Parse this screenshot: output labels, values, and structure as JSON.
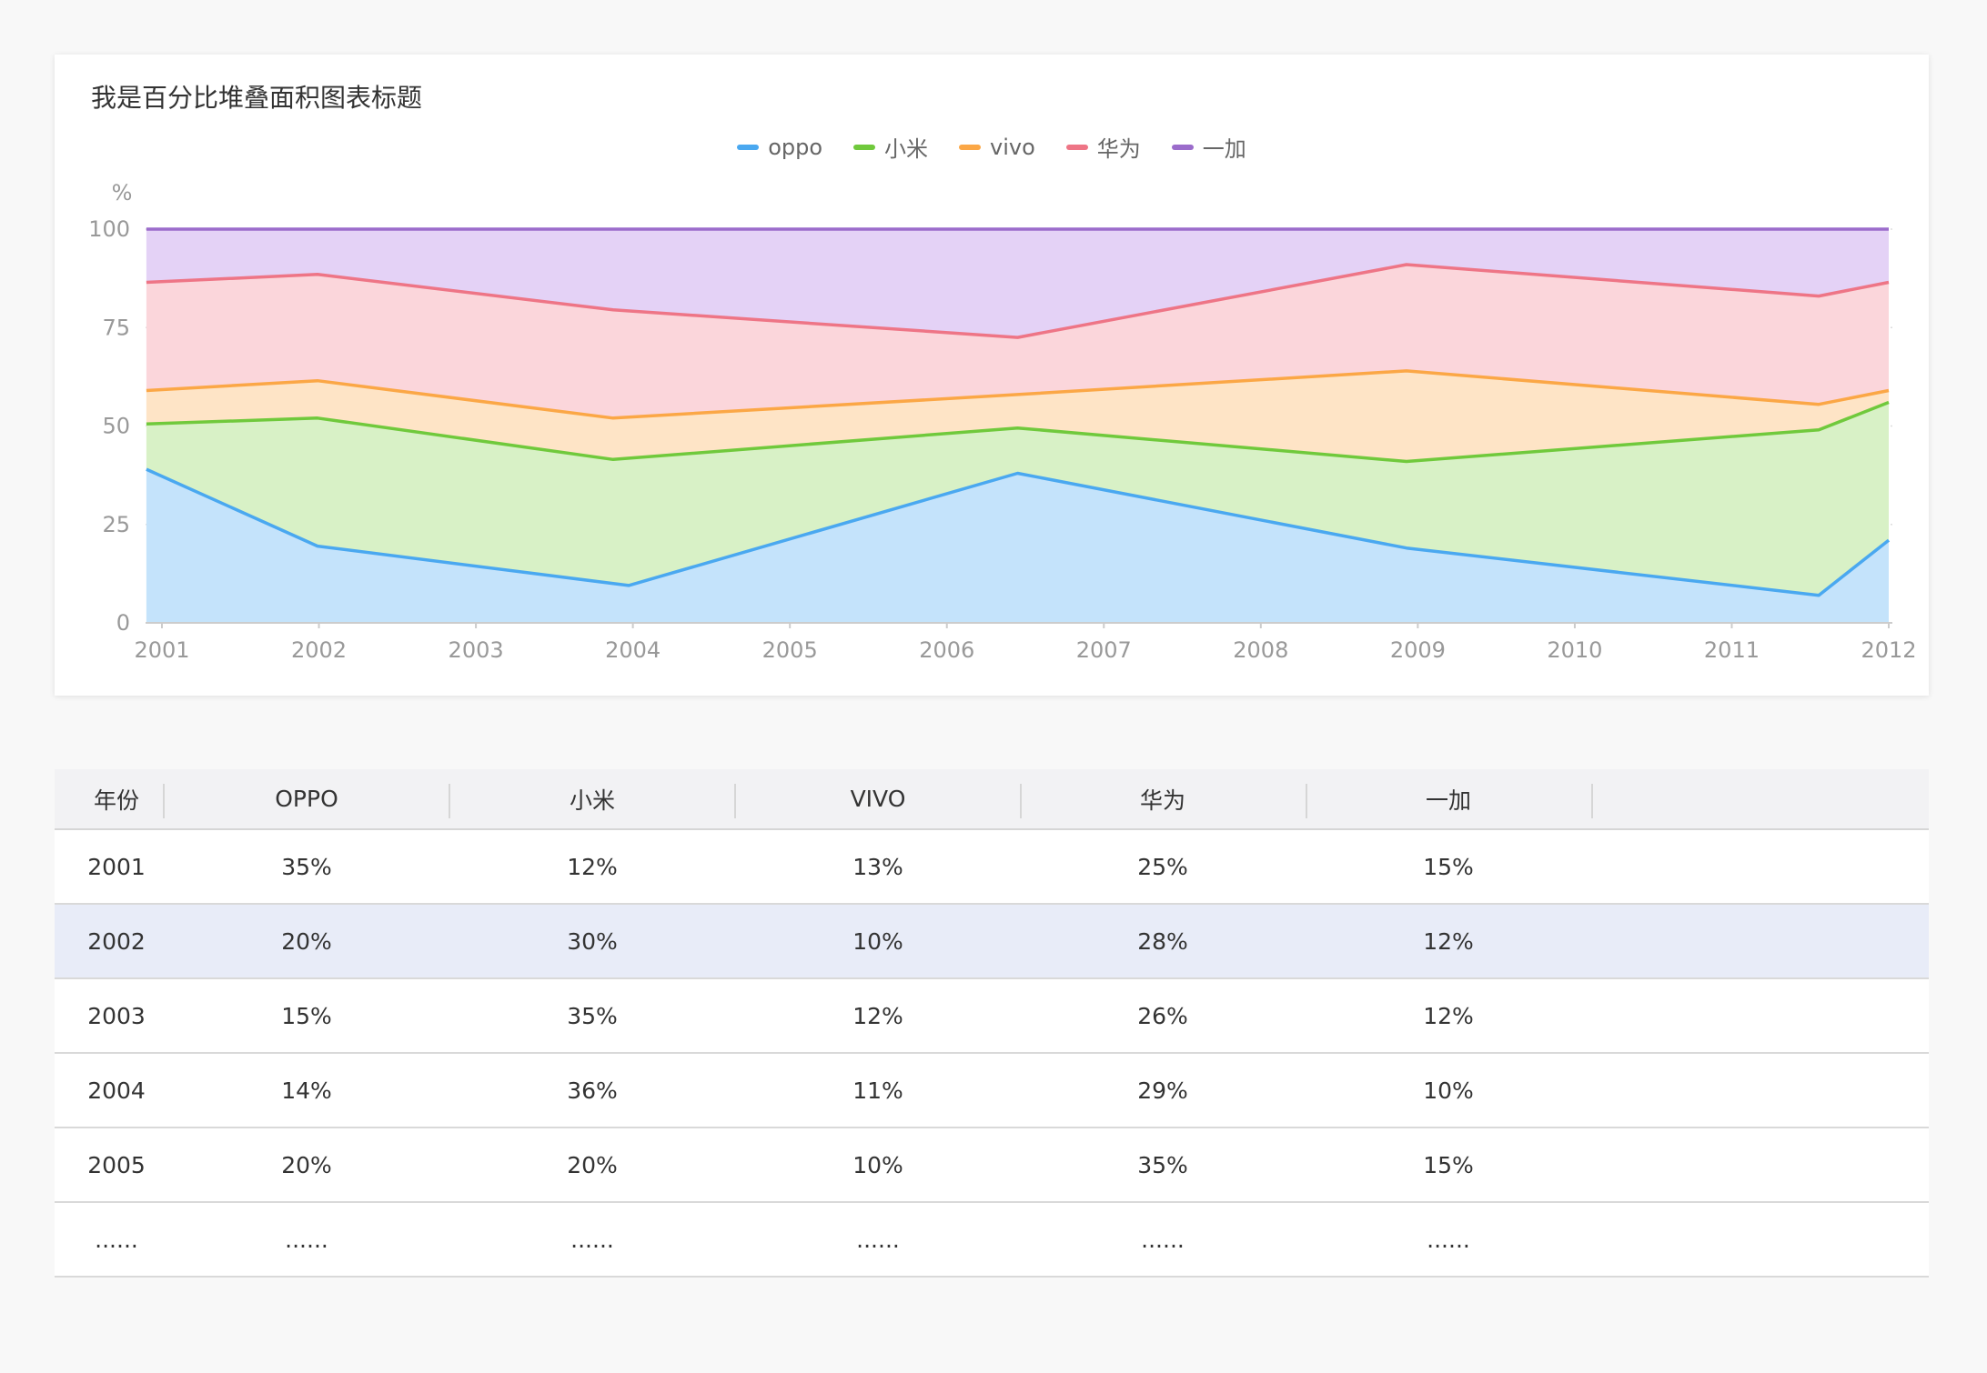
{
  "chart_data": {
    "type": "area",
    "stacked": "percent",
    "title": "我是百分比堆叠面积图表标题",
    "ylabel": "%",
    "xlabel": "",
    "ylim": [
      0,
      100
    ],
    "yticks": [
      0,
      25,
      50,
      75,
      100
    ],
    "xticks": [
      "2001",
      "2002",
      "2003",
      "2004",
      "2005",
      "2006",
      "2007",
      "2008",
      "2009",
      "2010",
      "2011",
      "2012"
    ],
    "xlim": [
      2001,
      2012.1
    ],
    "legend_position": "top-center",
    "grid": "horizontal dashed",
    "series": [
      {
        "name": "oppo",
        "color": "#4aa8f0",
        "fill": "#c4e3fb",
        "x": [
          2000.9,
          2002.0,
          2004.0,
          2006.5,
          2009.0,
          2011.65,
          2012.1
        ],
        "y": [
          39,
          19.5,
          9.5,
          38,
          19,
          7,
          21
        ]
      },
      {
        "name": "小米",
        "color": "#70c93c",
        "fill": "#d8f1c6",
        "x": [
          2000.9,
          2002.0,
          2003.9,
          2006.5,
          2009.0,
          2011.65,
          2012.1
        ],
        "y": [
          50.5,
          52,
          41.5,
          49.5,
          41,
          49,
          56
        ]
      },
      {
        "name": "vivo",
        "color": "#fba746",
        "fill": "#fee4c6",
        "x": [
          2000.9,
          2002.0,
          2003.9,
          2006.5,
          2009.0,
          2011.65,
          2012.1
        ],
        "y": [
          59,
          61.5,
          52,
          58,
          64,
          55.5,
          59
        ]
      },
      {
        "name": "华为",
        "color": "#ee7586",
        "fill": "#fbd6db",
        "x": [
          2000.9,
          2002.0,
          2003.9,
          2006.5,
          2009.0,
          2011.65,
          2012.1
        ],
        "y": [
          86.5,
          88.5,
          79.5,
          72.5,
          91,
          83,
          86.5
        ]
      },
      {
        "name": "一加",
        "color": "#9b6ccb",
        "fill": "#e4d2f6",
        "x": [
          2000.9,
          2002.0,
          2003.9,
          2006.5,
          2009.0,
          2011.65,
          2012.1
        ],
        "y": [
          100,
          100,
          100,
          100,
          100,
          100,
          100
        ]
      }
    ]
  },
  "colors": {
    "grid": "#dddddd",
    "axis_text": "#999999",
    "highlight_row": "#e8ecf8"
  },
  "table": {
    "headers": [
      "年份",
      "OPPO",
      "小米",
      "VIVO",
      "华为",
      "一加"
    ],
    "rows": [
      [
        "2001",
        "35%",
        "12%",
        "13%",
        "25%",
        "15%"
      ],
      [
        "2002",
        "20%",
        "30%",
        "10%",
        "28%",
        "12%"
      ],
      [
        "2003",
        "15%",
        "35%",
        "12%",
        "26%",
        "12%"
      ],
      [
        "2004",
        "14%",
        "36%",
        "11%",
        "29%",
        "10%"
      ],
      [
        "2005",
        "20%",
        "20%",
        "10%",
        "35%",
        "15%"
      ],
      [
        "......",
        "......",
        "......",
        "......",
        "......",
        "......"
      ]
    ],
    "highlighted_row": 1
  }
}
